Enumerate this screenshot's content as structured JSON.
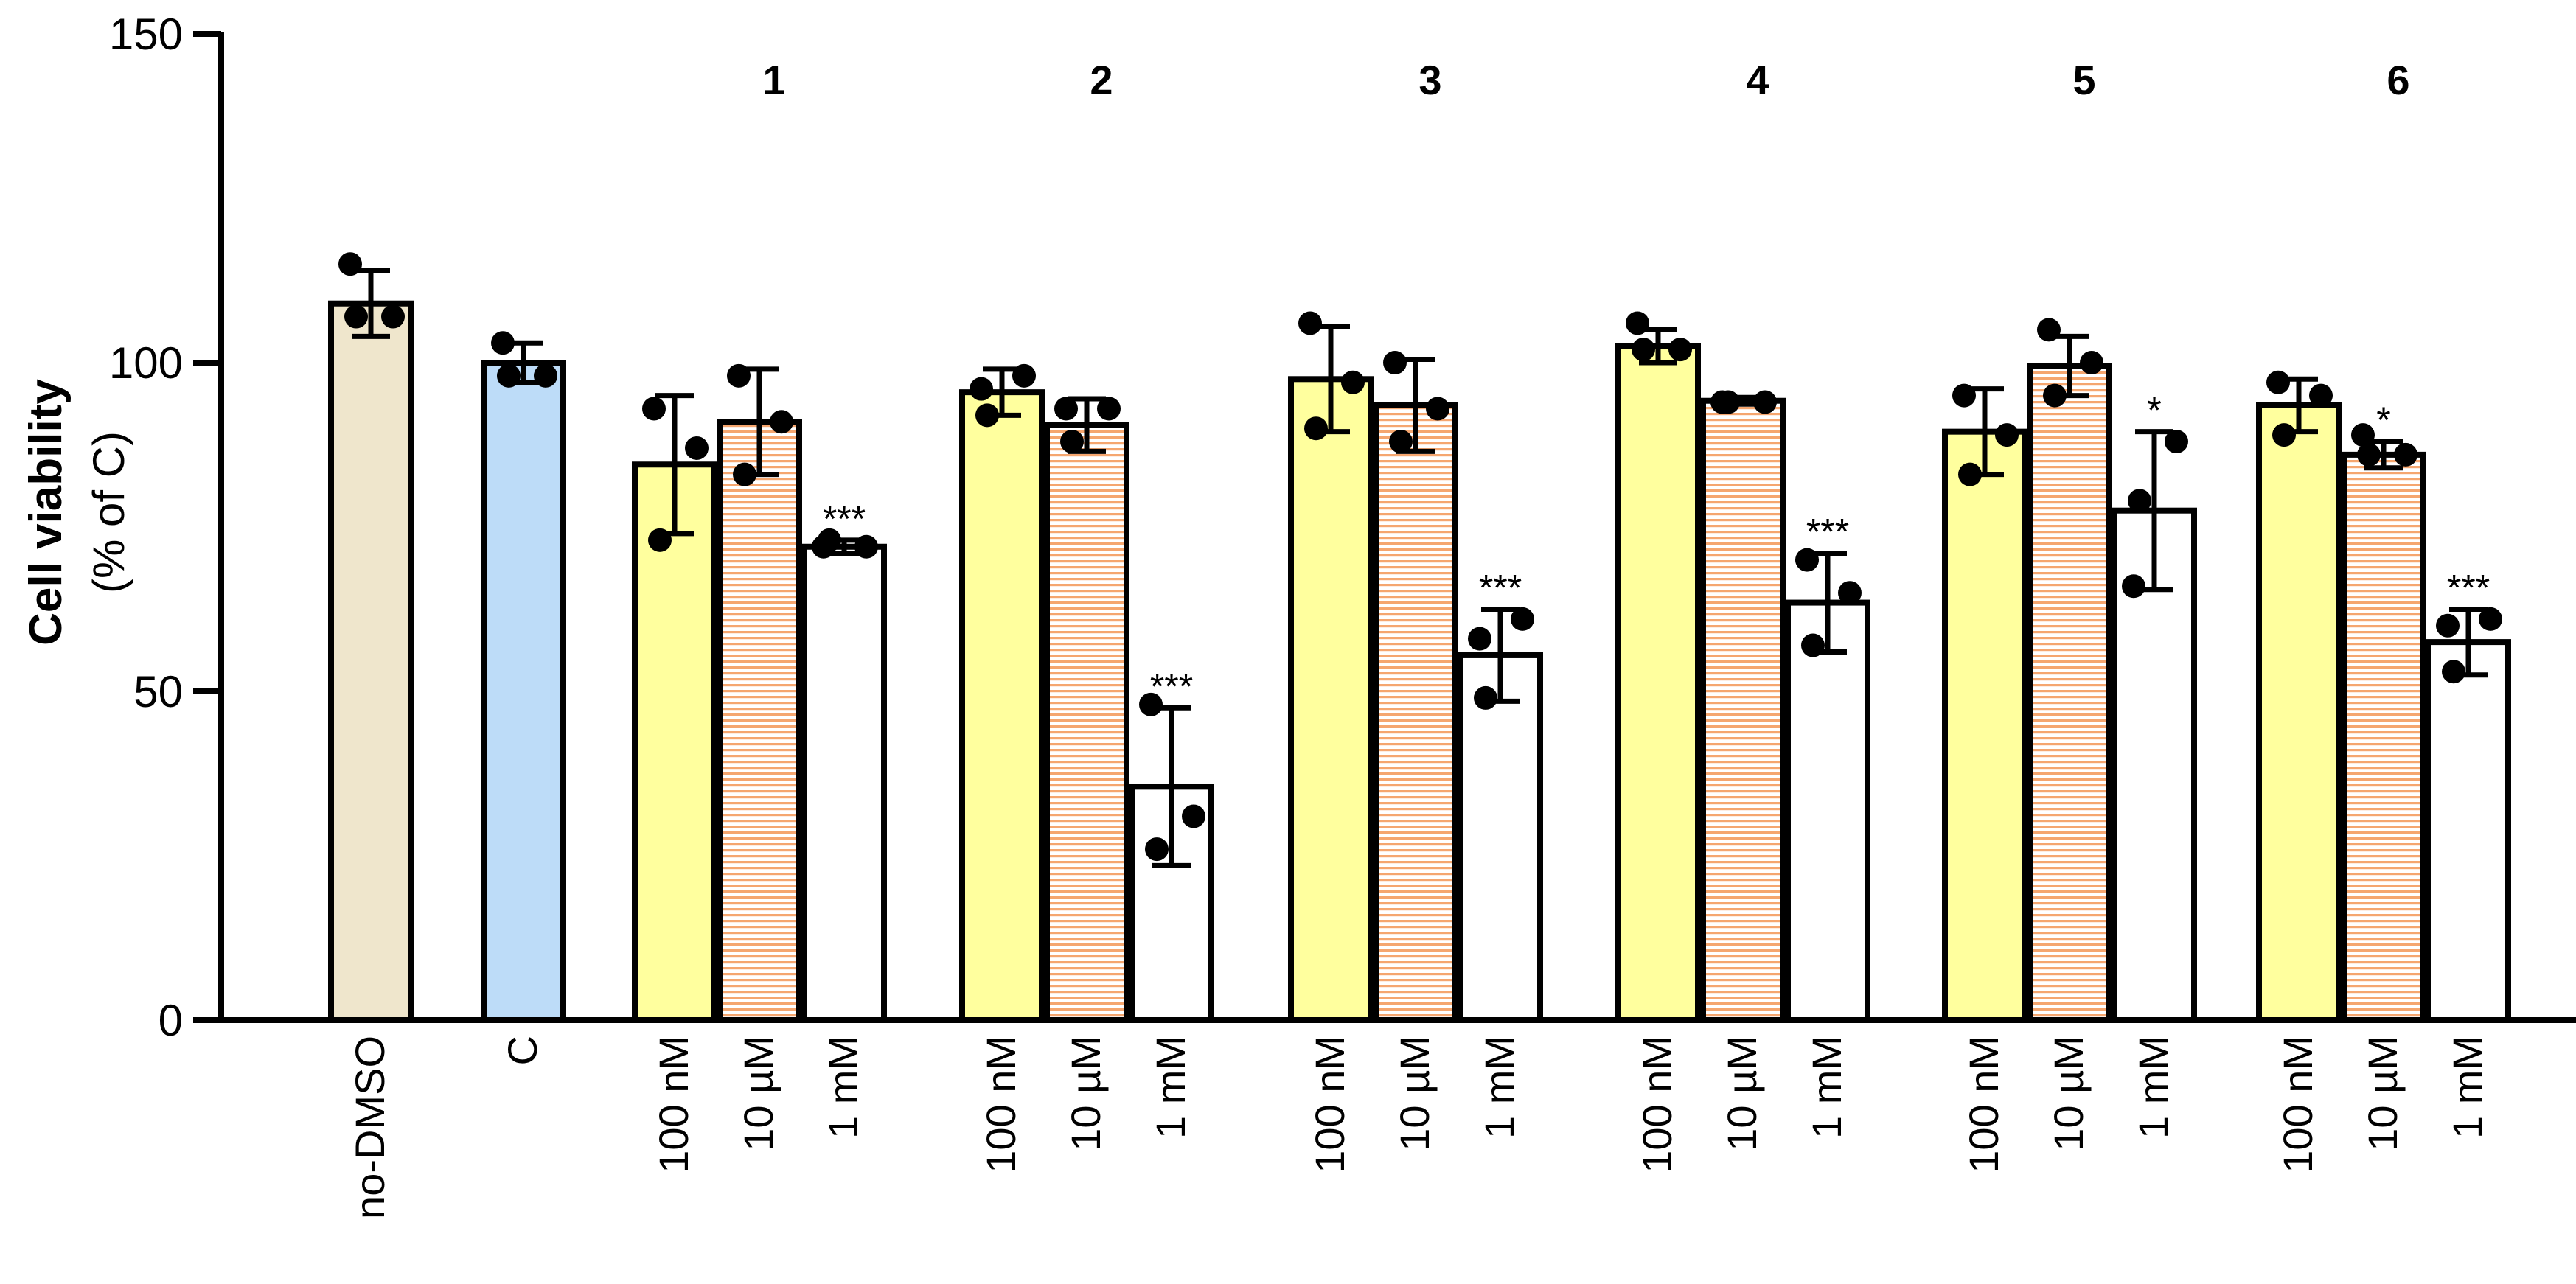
{
  "chart_data": {
    "type": "bar",
    "title": "",
    "xlabel": "",
    "ylabel": "Cell viability",
    "ylabel_sub": "(% of C)",
    "ylim": [
      0,
      150
    ],
    "yticks": [
      0,
      50,
      100,
      150
    ],
    "grid": false,
    "colors": {
      "no_dmso": "#efe6cc",
      "control": "#bddcf8",
      "nM100": "#ffff9e",
      "uM10_stripe": "#f5a66f",
      "mM1": "#ffffff",
      "outline": "#000000"
    },
    "groups": [
      {
        "label": "",
        "bars": [
          {
            "category": "no-DMSO",
            "kind": "no_dmso",
            "value": 109,
            "sd": 5,
            "points": [
              115,
              107,
              107
            ],
            "sig": ""
          }
        ]
      },
      {
        "label": "",
        "bars": [
          {
            "category": "C",
            "kind": "control",
            "value": 100,
            "sd": 3,
            "points": [
              103,
              98,
              98
            ],
            "sig": ""
          }
        ]
      },
      {
        "label": "1",
        "bars": [
          {
            "category": "100 nM",
            "kind": "nM100",
            "value": 84.5,
            "sd": 10.5,
            "points": [
              93,
              73,
              87
            ],
            "sig": ""
          },
          {
            "category": "10 µM",
            "kind": "uM10",
            "value": 91,
            "sd": 8,
            "points": [
              98,
              83,
              91
            ],
            "sig": ""
          },
          {
            "category": "1 mM",
            "kind": "mM1",
            "value": 72,
            "sd": 1,
            "points": [
              72,
              73,
              72
            ],
            "sig": "***"
          }
        ]
      },
      {
        "label": "2",
        "bars": [
          {
            "category": "100 nM",
            "kind": "nM100",
            "value": 95.5,
            "sd": 3.5,
            "points": [
              96,
              92,
              98
            ],
            "sig": ""
          },
          {
            "category": "10 µM",
            "kind": "uM10",
            "value": 90.5,
            "sd": 4,
            "points": [
              93,
              88,
              93
            ],
            "sig": ""
          },
          {
            "category": "1 mM",
            "kind": "mM1",
            "value": 35.5,
            "sd": 12,
            "points": [
              48,
              26,
              31
            ],
            "sig": "***"
          }
        ]
      },
      {
        "label": "3",
        "bars": [
          {
            "category": "100 nM",
            "kind": "nM100",
            "value": 97.5,
            "sd": 8,
            "points": [
              106,
              90,
              97
            ],
            "sig": ""
          },
          {
            "category": "10 µM",
            "kind": "uM10",
            "value": 93.5,
            "sd": 7,
            "points": [
              100,
              88,
              93
            ],
            "sig": ""
          },
          {
            "category": "1 mM",
            "kind": "mM1",
            "value": 55.5,
            "sd": 7,
            "points": [
              58,
              49,
              61
            ],
            "sig": "***"
          }
        ]
      },
      {
        "label": "4",
        "bars": [
          {
            "category": "100 nM",
            "kind": "nM100",
            "value": 102.5,
            "sd": 2.5,
            "points": [
              106,
              102,
              102
            ],
            "sig": ""
          },
          {
            "category": "10 µM",
            "kind": "uM10",
            "value": 94.2,
            "sd": 0.5,
            "points": [
              94,
              94,
              94
            ],
            "sig": ""
          },
          {
            "category": "1 mM",
            "kind": "mM1",
            "value": 63.5,
            "sd": 7.5,
            "points": [
              70,
              57,
              65
            ],
            "sig": "***"
          }
        ]
      },
      {
        "label": "5",
        "bars": [
          {
            "category": "100 nM",
            "kind": "nM100",
            "value": 89.5,
            "sd": 6.5,
            "points": [
              95,
              83,
              89
            ],
            "sig": ""
          },
          {
            "category": "10 µM",
            "kind": "uM10",
            "value": 99.5,
            "sd": 4.5,
            "points": [
              105,
              95,
              100
            ],
            "sig": ""
          },
          {
            "category": "1 mM",
            "kind": "mM1",
            "value": 77.5,
            "sd": 12,
            "points": [
              66,
              79,
              88
            ],
            "sig": "*"
          }
        ]
      },
      {
        "label": "6",
        "bars": [
          {
            "category": "100 nM",
            "kind": "nM100",
            "value": 93.5,
            "sd": 4,
            "points": [
              97,
              89,
              95
            ],
            "sig": ""
          },
          {
            "category": "10 µM",
            "kind": "uM10",
            "value": 86,
            "sd": 2,
            "points": [
              89,
              86,
              86
            ],
            "sig": "*"
          },
          {
            "category": "1 mM",
            "kind": "mM1",
            "value": 57.5,
            "sd": 5,
            "points": [
              60,
              53,
              61
            ],
            "sig": "***"
          }
        ]
      }
    ]
  }
}
